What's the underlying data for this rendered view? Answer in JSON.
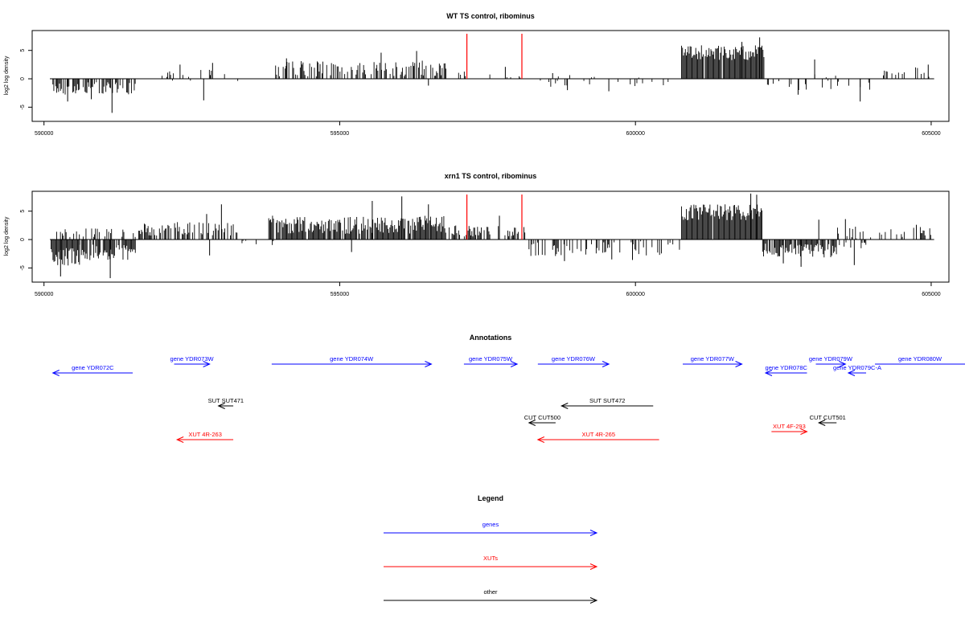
{
  "colors": {
    "genes": "#0000ff",
    "xuts": "#ff0000",
    "other": "#000000",
    "marker": "#ff0000"
  },
  "chart_data": [
    {
      "type": "bar",
      "title": "WT TS control, ribominus",
      "ylabel": "log2 log density",
      "xlim": [
        589800,
        605300
      ],
      "ylim": [
        -7.5,
        8.5
      ],
      "x_ticks": [
        590000,
        595000,
        600000,
        605000
      ],
      "x_tick_labels": [
        "590000",
        "595000",
        "600000",
        "605000"
      ],
      "y_ticks": [
        -5,
        0,
        5
      ],
      "y_tick_labels": [
        "-5",
        "0",
        "5"
      ],
      "marker_lines": [
        597150,
        598080
      ],
      "segments": [
        {
          "x0": 590150,
          "x1": 591550,
          "mean": -1.7,
          "amp": 1.1,
          "density": 0.6,
          "spikes": [
            [
              590400,
              -4.0
            ],
            [
              591150,
              -6.0
            ],
            [
              590800,
              -3.6
            ]
          ]
        },
        {
          "x0": 591900,
          "x1": 593300,
          "mean": 0.6,
          "amp": 1.0,
          "density": 0.15,
          "spikes": [
            [
              592700,
              -3.8
            ],
            [
              592850,
              2.8
            ],
            [
              592300,
              2.5
            ]
          ]
        },
        {
          "x0": 593900,
          "x1": 596800,
          "mean": 1.8,
          "amp": 1.4,
          "density": 0.55,
          "spikes": [
            [
              596300,
              4.9
            ],
            [
              595700,
              4.6
            ],
            [
              594100,
              3.6
            ],
            [
              596500,
              -1.2
            ]
          ]
        },
        {
          "x0": 596850,
          "x1": 598100,
          "mean": 0.7,
          "amp": 0.6,
          "density": 0.12,
          "spikes": [
            [
              597800,
              2.1
            ]
          ]
        },
        {
          "x0": 598200,
          "x1": 600700,
          "mean": -0.4,
          "amp": 1.1,
          "density": 0.12,
          "spikes": [
            [
              599550,
              -2.2
            ],
            [
              598850,
              -2.0
            ],
            [
              598600,
              1.0
            ]
          ]
        },
        {
          "x0": 600780,
          "x1": 602180,
          "mean": 4.6,
          "amp": 1.3,
          "density": 0.95,
          "spikes": [
            [
              602100,
              7.3
            ],
            [
              601800,
              6.5
            ]
          ]
        },
        {
          "x0": 602200,
          "x1": 603000,
          "mean": -0.9,
          "amp": 1.1,
          "density": 0.2,
          "spikes": [
            [
              602750,
              -2.8
            ]
          ]
        },
        {
          "x0": 603000,
          "x1": 604000,
          "mean": -0.5,
          "amp": 1.5,
          "density": 0.3,
          "spikes": [
            [
              603030,
              3.4
            ],
            [
              603800,
              -4.0
            ]
          ]
        },
        {
          "x0": 604000,
          "x1": 605000,
          "mean": 1.2,
          "amp": 0.9,
          "density": 0.18,
          "spikes": [
            [
              604950,
              2.5
            ]
          ]
        }
      ]
    },
    {
      "type": "bar",
      "title": "xrn1 TS control, ribominus",
      "ylabel": "log2 log density",
      "xlim": [
        589800,
        605300
      ],
      "ylim": [
        -7.5,
        8.5
      ],
      "x_ticks": [
        590000,
        595000,
        600000,
        605000
      ],
      "x_tick_labels": [
        "590000",
        "595000",
        "600000",
        "605000"
      ],
      "y_ticks": [
        -5,
        0,
        5
      ],
      "y_tick_labels": [
        "-5",
        "0",
        "5"
      ],
      "marker_lines": [
        597150,
        598080
      ],
      "segments": [
        {
          "x0": 590120,
          "x1": 590600,
          "mean": -3.0,
          "amp": 1.6,
          "density": 1.0,
          "spikes": [
            [
              590280,
              -6.5
            ]
          ]
        },
        {
          "x0": 590600,
          "x1": 591550,
          "mean": -2.3,
          "amp": 1.5,
          "density": 0.85,
          "spikes": [
            [
              591120,
              -6.8
            ]
          ]
        },
        {
          "x0": 590150,
          "x1": 591550,
          "mean": 1.2,
          "amp": 0.8,
          "density": 0.35,
          "spikes": []
        },
        {
          "x0": 591600,
          "x1": 593300,
          "mean": 1.9,
          "amp": 1.2,
          "density": 0.55,
          "spikes": [
            [
              593000,
              6.2
            ],
            [
              592750,
              4.5
            ],
            [
              592800,
              -2.8
            ]
          ]
        },
        {
          "x0": 593300,
          "x1": 593900,
          "mean": -0.6,
          "amp": 0.5,
          "density": 0.12,
          "spikes": []
        },
        {
          "x0": 593800,
          "x1": 596800,
          "mean": 2.6,
          "amp": 1.6,
          "density": 0.9,
          "spikes": [
            [
              596050,
              7.6
            ],
            [
              595550,
              6.8
            ],
            [
              596500,
              6.2
            ],
            [
              595200,
              -2.2
            ]
          ]
        },
        {
          "x0": 596850,
          "x1": 598150,
          "mean": 1.5,
          "amp": 1.0,
          "density": 0.5,
          "spikes": [
            [
              597700,
              4.2
            ]
          ]
        },
        {
          "x0": 598200,
          "x1": 600750,
          "mean": -1.6,
          "amp": 1.3,
          "density": 0.3,
          "spikes": [
            [
              598800,
              -3.8
            ],
            [
              599600,
              -3.5
            ],
            [
              599950,
              -3.6
            ]
          ]
        },
        {
          "x0": 600780,
          "x1": 602150,
          "mean": 4.8,
          "amp": 1.4,
          "density": 0.95,
          "spikes": [
            [
              601950,
              8.1
            ],
            [
              602050,
              7.9
            ]
          ]
        },
        {
          "x0": 602150,
          "x1": 603400,
          "mean": -2.0,
          "amp": 1.3,
          "density": 0.8,
          "spikes": [
            [
              602800,
              -4.8
            ],
            [
              603100,
              3.5
            ],
            [
              602500,
              -4.2
            ]
          ]
        },
        {
          "x0": 603400,
          "x1": 604000,
          "mean": 0.3,
          "amp": 2.0,
          "density": 0.45,
          "spikes": [
            [
              603700,
              -4.5
            ],
            [
              603550,
              3.6
            ]
          ]
        },
        {
          "x0": 604000,
          "x1": 605050,
          "mean": 1.3,
          "amp": 0.9,
          "density": 0.3,
          "spikes": [
            [
              604750,
              2.6
            ]
          ]
        }
      ]
    }
  ],
  "annotations": {
    "title": "Annotations",
    "items": [
      {
        "label": "gene YDR072C",
        "kind": "genes",
        "row": 1,
        "x0": 590150,
        "x1": 591500,
        "dir": "left"
      },
      {
        "label": "gene YDR073W",
        "kind": "genes",
        "row": 0,
        "x0": 592200,
        "x1": 592800,
        "dir": "right"
      },
      {
        "label": "gene YDR074W",
        "kind": "genes",
        "row": 0,
        "x0": 593850,
        "x1": 596550,
        "dir": "right"
      },
      {
        "label": "gene YDR075W",
        "kind": "genes",
        "row": 0,
        "x0": 597100,
        "x1": 598000,
        "dir": "right"
      },
      {
        "label": "gene YDR076W",
        "kind": "genes",
        "row": 0,
        "x0": 598350,
        "x1": 599550,
        "dir": "right"
      },
      {
        "label": "gene YDR077W",
        "kind": "genes",
        "row": 0,
        "x0": 600800,
        "x1": 601800,
        "dir": "right"
      },
      {
        "label": "gene YDR078C",
        "kind": "genes",
        "row": 1,
        "x0": 602200,
        "x1": 602900,
        "dir": "left"
      },
      {
        "label": "gene YDR079W",
        "kind": "genes",
        "row": 0,
        "x0": 603050,
        "x1": 603550,
        "dir": "right"
      },
      {
        "label": "gene YDR079C-A",
        "kind": "genes",
        "row": 1,
        "x0": 603600,
        "x1": 603900,
        "dir": "left"
      },
      {
        "label": "gene YDR080W",
        "kind": "genes",
        "row": 0,
        "x0": 604050,
        "x1": 606200,
        "dir": "right"
      },
      {
        "label": "SUT SUT471",
        "kind": "other",
        "row": 2,
        "x0": 592950,
        "x1": 593200,
        "dir": "left"
      },
      {
        "label": "SUT SUT472",
        "kind": "other",
        "row": 2,
        "x0": 598750,
        "x1": 600300,
        "dir": "left"
      },
      {
        "label": "CUT CUT500",
        "kind": "other",
        "row": 3,
        "x0": 598200,
        "x1": 598650,
        "dir": "left"
      },
      {
        "label": "CUT CUT501",
        "kind": "other",
        "row": 3,
        "x0": 603100,
        "x1": 603400,
        "dir": "left"
      },
      {
        "label": "XUT 4R-263",
        "kind": "xuts",
        "row": 4,
        "x0": 592250,
        "x1": 593200,
        "dir": "left"
      },
      {
        "label": "XUT 4R-265",
        "kind": "xuts",
        "row": 4,
        "x0": 598350,
        "x1": 600400,
        "dir": "left"
      },
      {
        "label": "XUT 4F-293",
        "kind": "xuts",
        "row": 3.5,
        "x0": 602300,
        "x1": 602900,
        "dir": "right"
      }
    ]
  },
  "legend": {
    "title": "Legend",
    "items": [
      {
        "label": "genes",
        "kind": "genes"
      },
      {
        "label": "XUTs",
        "kind": "xuts"
      },
      {
        "label": "other",
        "kind": "other"
      }
    ]
  }
}
